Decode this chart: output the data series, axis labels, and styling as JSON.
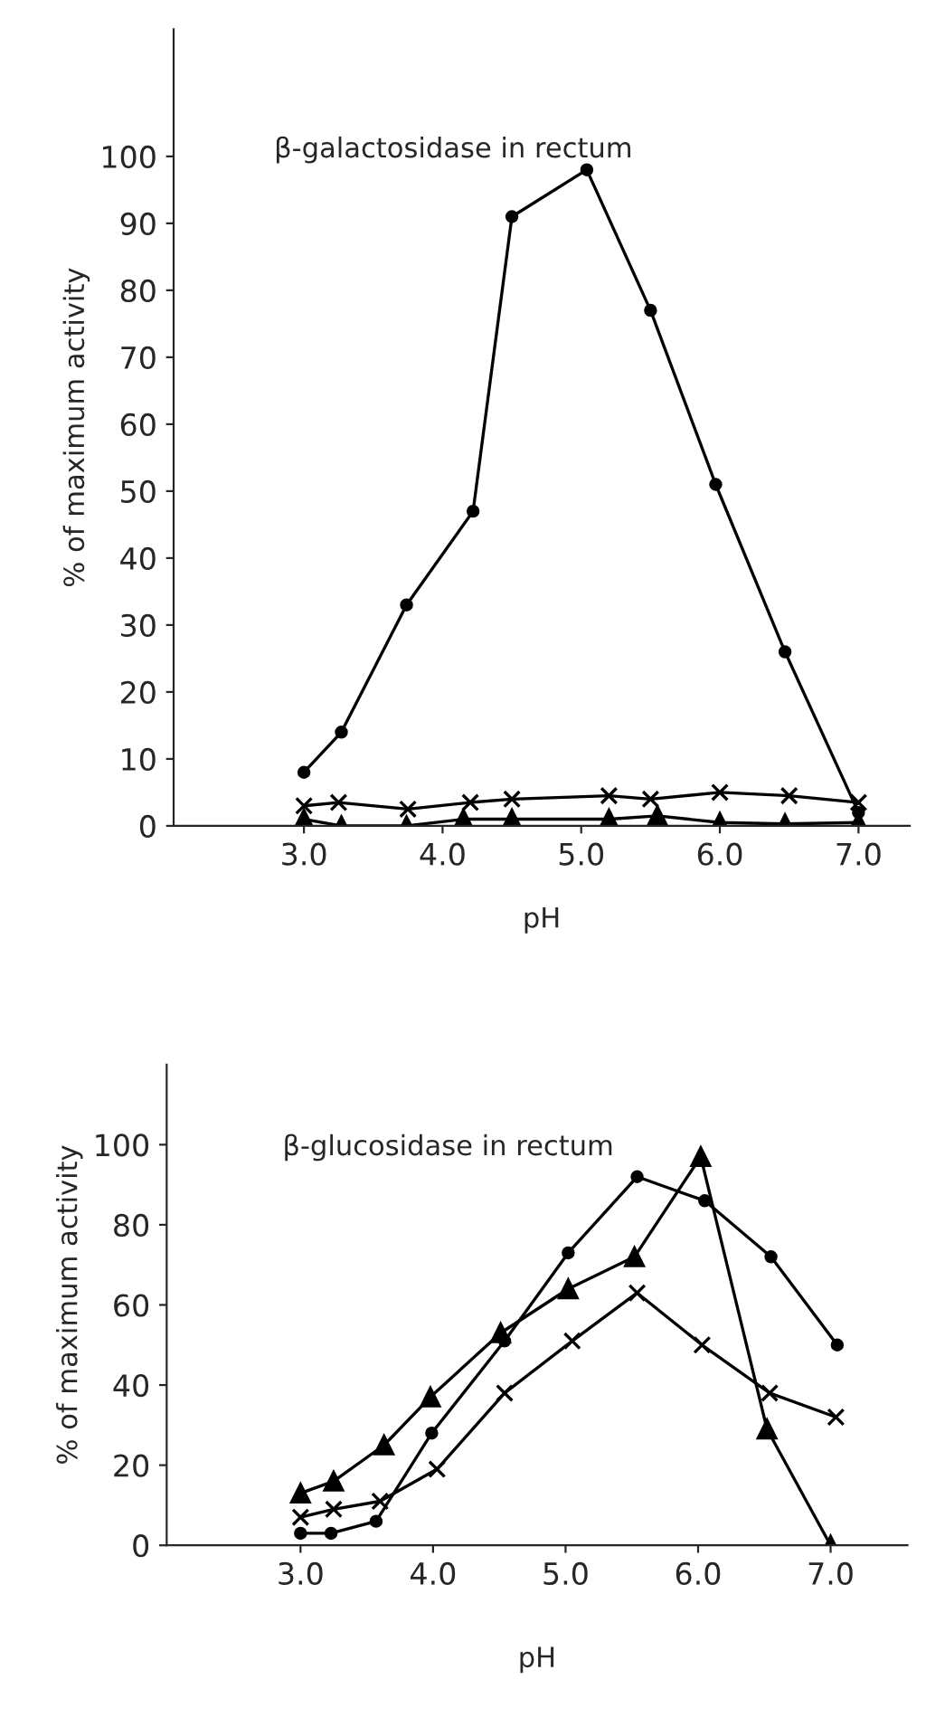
{
  "chart_data": [
    {
      "type": "line",
      "title": "β-galactosidase in rectum",
      "xlabel": "pH",
      "ylabel": "% of maximum activity",
      "xlim": [
        2.06,
        7.37
      ],
      "ylim": [
        0,
        119
      ],
      "xticks": [
        {
          "value": 3,
          "label": "3.0"
        },
        {
          "value": 4,
          "label": "4.0"
        },
        {
          "value": 5,
          "label": "5.0"
        },
        {
          "value": 6,
          "label": "6.0"
        },
        {
          "value": 7,
          "label": "7.0"
        }
      ],
      "yticks": [
        0,
        10,
        20,
        30,
        40,
        50,
        60,
        70,
        80,
        90,
        100
      ],
      "grid": false,
      "series": [
        {
          "color": "#000000",
          "marker": "circle",
          "x": [
            3.0,
            3.27,
            3.74,
            4.22,
            4.5,
            5.04,
            5.5,
            5.97,
            6.47,
            7.0
          ],
          "values": [
            8,
            14,
            33,
            47,
            91,
            98,
            77,
            51,
            26,
            2
          ]
        },
        {
          "color": "#000000",
          "marker": "cross",
          "x": [
            3.0,
            3.25,
            3.75,
            4.2,
            4.5,
            5.2,
            5.5,
            6.0,
            6.5,
            7.0
          ],
          "values": [
            3,
            3.5,
            2.5,
            3.5,
            4,
            4.5,
            4,
            5,
            4.5,
            3.5
          ]
        },
        {
          "color": "#000000",
          "marker": "triangle",
          "x": [
            3.0,
            3.27,
            3.74,
            4.15,
            4.5,
            5.2,
            5.55,
            6.0,
            6.47,
            7.0
          ],
          "values": [
            1,
            0,
            0,
            1,
            1,
            1,
            1.5,
            0.5,
            0.3,
            0.5
          ]
        }
      ]
    },
    {
      "type": "line",
      "title": "β-glucosidase in rectum",
      "xlabel": "pH",
      "ylabel": "% of maximum activity",
      "xlim": [
        1.99,
        7.58
      ],
      "ylim": [
        0,
        120
      ],
      "xticks": [
        {
          "value": 3,
          "label": "3.0"
        },
        {
          "value": 4,
          "label": "4.0"
        },
        {
          "value": 5,
          "label": "5.0"
        },
        {
          "value": 6,
          "label": "6.0"
        },
        {
          "value": 7,
          "label": "7.0"
        }
      ],
      "yticks": [
        0,
        20,
        40,
        60,
        80,
        100
      ],
      "grid": false,
      "series": [
        {
          "color": "#000000",
          "marker": "circle",
          "x": [
            3.0,
            3.23,
            3.57,
            3.99,
            4.54,
            5.02,
            5.54,
            6.05,
            6.55,
            7.05
          ],
          "values": [
            3,
            3,
            6,
            28,
            51,
            73,
            92,
            86,
            72,
            50
          ]
        },
        {
          "color": "#000000",
          "marker": "cross",
          "x": [
            3.0,
            3.25,
            3.6,
            4.03,
            4.54,
            5.05,
            5.54,
            6.03,
            6.54,
            7.04
          ],
          "values": [
            7,
            9,
            11,
            19,
            38,
            51,
            63,
            50,
            38,
            32
          ]
        },
        {
          "color": "#000000",
          "marker": "triangle",
          "x": [
            3.0,
            3.25,
            3.63,
            3.98,
            4.51,
            5.02,
            5.52,
            6.02,
            6.52,
            7.0
          ],
          "values": [
            13,
            16,
            25,
            37,
            53,
            64,
            72,
            97,
            29,
            0
          ]
        }
      ]
    }
  ]
}
